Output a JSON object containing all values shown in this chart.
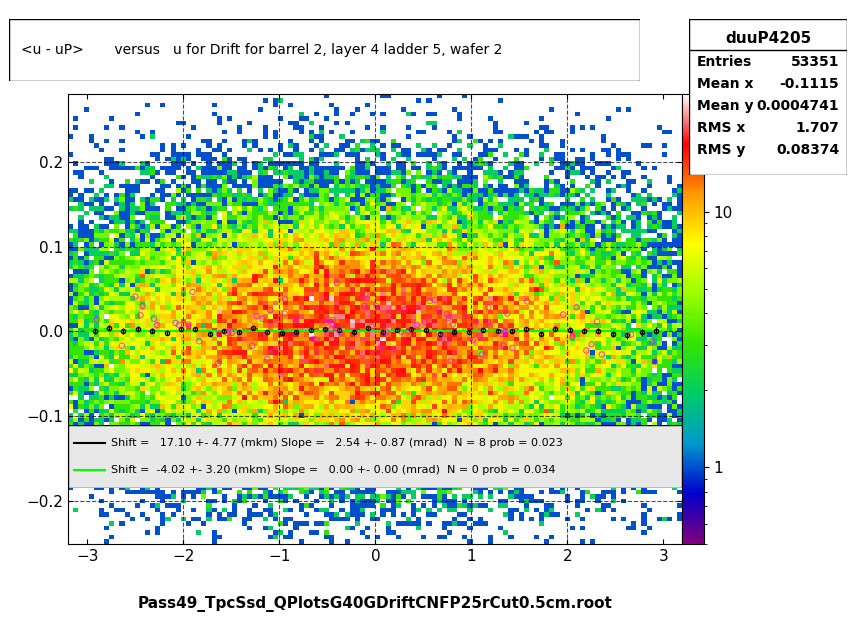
{
  "title": "<u - uP>       versus   u for Drift for barrel 2, layer 4 ladder 5, wafer 2",
  "xlabel": "",
  "ylabel": "",
  "bottom_label": "Pass49_TpcSsd_QPlotsG40GDriftCNFP25rCut0.5cm.root",
  "xlim": [
    -3.2,
    3.2
  ],
  "ylim": [
    -0.25,
    0.28
  ],
  "xticks": [
    -3,
    -2,
    -1,
    0,
    1,
    2,
    3
  ],
  "yticks": [
    -0.2,
    -0.1,
    0.0,
    0.1,
    0.2
  ],
  "stats_title": "duuP4205",
  "stats_entries": "53351",
  "stats_mean_x": "-0.1115",
  "stats_mean_y": "0.0004741",
  "stats_rms_x": "1.707",
  "stats_rms_y": "0.08374",
  "colorbar_ticks": [
    1,
    10
  ],
  "legend_line1": "Shift =   17.10 +- 4.77 (mkm) Slope =   2.54 +- 0.87 (mrad)  N = 8 prob = 0.023",
  "legend_line2": "Shift =  -4.02 +- 3.20 (mkm) Slope =   0.00 +- 0.00 (mrad)  N = 0 prob = 0.034",
  "bg_color": "#f0f0f0",
  "plot_bg": "#f0f0f0"
}
